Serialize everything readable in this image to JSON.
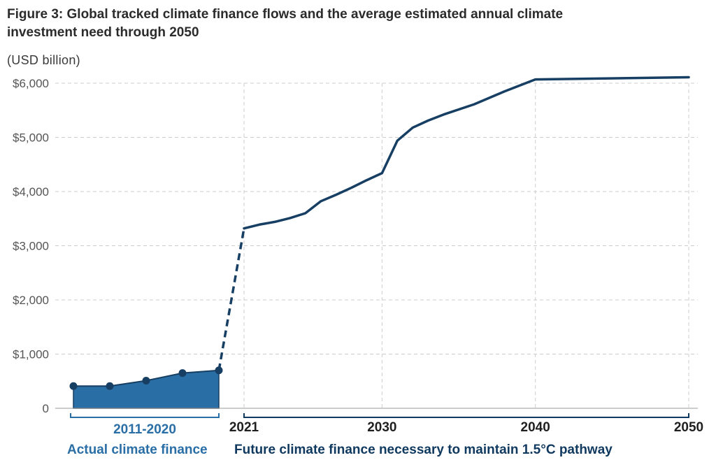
{
  "chart_data": {
    "type": "area+line",
    "title": "Figure 3: Global tracked climate finance flows and the average estimated annual climate investment need through 2050",
    "unit_label": "(USD billion)",
    "ylim": [
      0,
      6000
    ],
    "y_ticks": [
      {
        "value": 0,
        "label": "0"
      },
      {
        "value": 1000,
        "label": "$1,000"
      },
      {
        "value": 2000,
        "label": "$2,000"
      },
      {
        "value": 3000,
        "label": "$3,000"
      },
      {
        "value": 4000,
        "label": "$4,000"
      },
      {
        "value": 5000,
        "label": "$5,000"
      },
      {
        "value": 6000,
        "label": "$6,000"
      }
    ],
    "x_ticks": [
      {
        "value": 2021,
        "label": "2021"
      },
      {
        "value": 2030,
        "label": "2030"
      },
      {
        "value": 2040,
        "label": "2040"
      },
      {
        "value": 2050,
        "label": "2050"
      }
    ],
    "grid": true,
    "actual_points": [
      {
        "x": 2012,
        "y": 410
      },
      {
        "x": 2014,
        "y": 410
      },
      {
        "x": 2016,
        "y": 510
      },
      {
        "x": 2018,
        "y": 650
      },
      {
        "x": 2020,
        "y": 700
      }
    ],
    "actual_band": {
      "x0": 2012,
      "x1": 2020
    },
    "connector": [
      {
        "x": 2020,
        "y": 700
      },
      {
        "x": 2021,
        "y": 3320
      }
    ],
    "future_series": [
      {
        "x": 2021,
        "y": 3320
      },
      {
        "x": 2022,
        "y": 3390
      },
      {
        "x": 2023,
        "y": 3440
      },
      {
        "x": 2024,
        "y": 3510
      },
      {
        "x": 2025,
        "y": 3600
      },
      {
        "x": 2026,
        "y": 3820
      },
      {
        "x": 2027,
        "y": 3940
      },
      {
        "x": 2028,
        "y": 4070
      },
      {
        "x": 2029,
        "y": 4210
      },
      {
        "x": 2030,
        "y": 4340
      },
      {
        "x": 2031,
        "y": 4940
      },
      {
        "x": 2032,
        "y": 5180
      },
      {
        "x": 2033,
        "y": 5310
      },
      {
        "x": 2034,
        "y": 5420
      },
      {
        "x": 2036,
        "y": 5610
      },
      {
        "x": 2038,
        "y": 5850
      },
      {
        "x": 2040,
        "y": 6070
      },
      {
        "x": 2050,
        "y": 6110
      }
    ],
    "period_label": "2011-2020",
    "actual_label": "Actual climate finance",
    "future_label": "Future climate finance necessary to maintain 1.5°C pathway",
    "colors": {
      "area": "#2a6ea6",
      "line": "#173f63",
      "bracket_actual": "#2a6ea6",
      "bracket_future": "#10395f",
      "grid": "#cccccc"
    }
  }
}
